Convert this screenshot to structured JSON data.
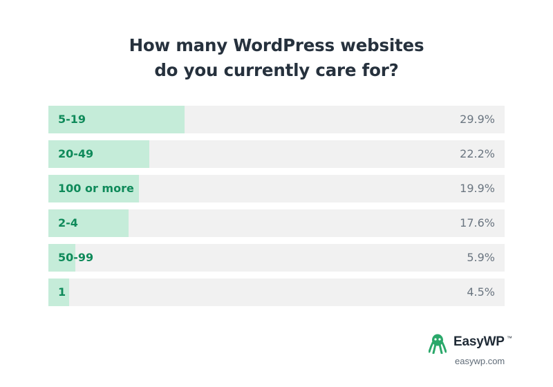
{
  "colors": {
    "bar_fill": "#c5ecd9",
    "track": "#f1f1f1",
    "category_text": "#0f8a5a",
    "value_text": "#6a7580",
    "title_text": "#26313d",
    "brand_green": "#2aa86a"
  },
  "chart_data": {
    "type": "bar",
    "orientation": "horizontal",
    "title": "How many WordPress websites do you currently care for?",
    "title_lines": [
      "How many WordPress websites",
      "do you currently care for?"
    ],
    "categories": [
      "5-19",
      "20-49",
      "100 or more",
      "2-4",
      "50-99",
      "1"
    ],
    "values": [
      29.9,
      22.2,
      19.9,
      17.6,
      5.9,
      4.5
    ],
    "value_labels": [
      "29.9%",
      "22.2%",
      "19.9%",
      "17.6%",
      "5.9%",
      "4.5%"
    ],
    "unit": "%",
    "xlim": [
      0,
      100
    ],
    "grid": false,
    "legend": "none"
  },
  "brand": {
    "logo_icon": "octopus-icon",
    "name": "EasyWP",
    "trademark": "™",
    "url": "easywp.com"
  }
}
